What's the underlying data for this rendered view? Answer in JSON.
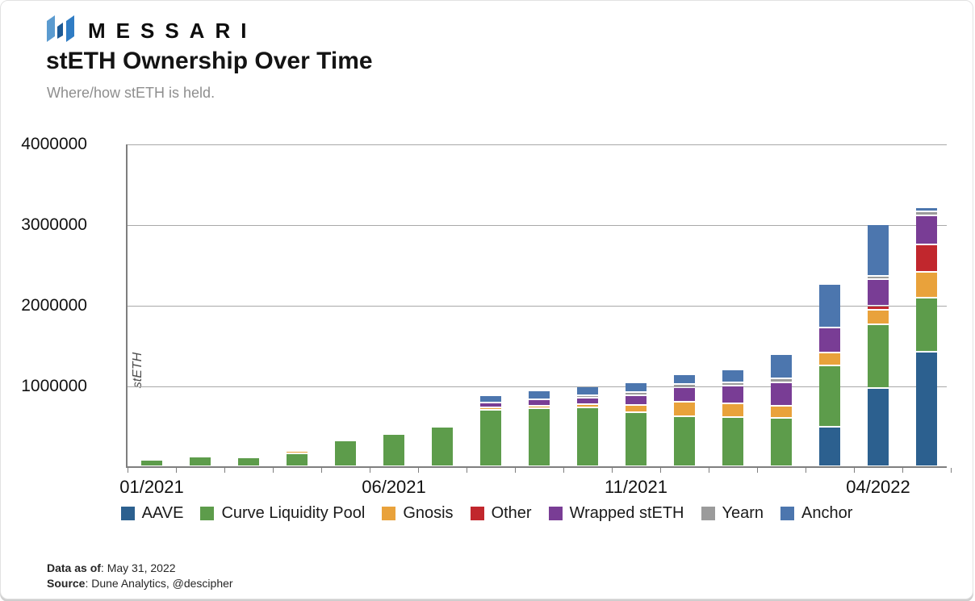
{
  "brand": {
    "name": "MESSARI"
  },
  "header": {
    "title": "stETH Ownership Over Time",
    "subtitle": "Where/how stETH is held."
  },
  "footer": {
    "data_as_of_label": "Data as of",
    "data_as_of_value": ": May 31, 2022",
    "source_label": "Source",
    "source_value": ": Dune Analytics, @descipher"
  },
  "icons": {
    "logo": "messari-logo-icon",
    "logo_colors": [
      "#5b9bd0",
      "#1d5a96",
      "#2f7cc4"
    ]
  },
  "chart_data": {
    "type": "bar",
    "stacked": true,
    "title": "stETH Ownership Over Time",
    "xlabel": "",
    "ylabel": "stETH",
    "ylim": [
      0,
      4000000
    ],
    "ytick_interval": 1000000,
    "ytick_labels_top_to_bottom": [
      "4000000",
      "3000000",
      "2000000",
      "1000000"
    ],
    "grid": "horizontal",
    "legend_position": "bottom",
    "categories": [
      "01/2021",
      "02/2021",
      "03/2021",
      "04/2021",
      "05/2021",
      "06/2021",
      "07/2021",
      "08/2021",
      "09/2021",
      "10/2021",
      "11/2021",
      "12/2021",
      "01/2022",
      "02/2022",
      "03/2022",
      "04/2022",
      "05/2022"
    ],
    "xticks_shown": [
      {
        "index": 0,
        "label": "01/2021"
      },
      {
        "index": 5,
        "label": "06/2021"
      },
      {
        "index": 10,
        "label": "11/2021"
      },
      {
        "index": 15,
        "label": "04/2022"
      }
    ],
    "series": [
      {
        "name": "AAVE",
        "color": "#2c608f",
        "values": [
          0,
          0,
          0,
          0,
          0,
          0,
          0,
          0,
          0,
          0,
          0,
          0,
          0,
          0,
          470000,
          950000,
          1400000
        ]
      },
      {
        "name": "Curve Liquidity Pool",
        "color": "#5d9c4b",
        "values": [
          60000,
          100000,
          90000,
          140000,
          300000,
          380000,
          475000,
          680000,
          700000,
          710000,
          650000,
          600000,
          590000,
          580000,
          740000,
          770000,
          650000
        ]
      },
      {
        "name": "Gnosis",
        "color": "#e9a23b",
        "values": [
          0,
          0,
          0,
          15000,
          0,
          0,
          0,
          10000,
          10000,
          25000,
          75000,
          165000,
          155000,
          135000,
          140000,
          165000,
          300000
        ]
      },
      {
        "name": "Other",
        "color": "#c1272d",
        "values": [
          0,
          0,
          0,
          0,
          0,
          0,
          0,
          0,
          0,
          0,
          0,
          0,
          0,
          0,
          0,
          25000,
          325000
        ]
      },
      {
        "name": "Wrapped stETH",
        "color": "#793d95",
        "values": [
          0,
          0,
          0,
          0,
          0,
          0,
          0,
          45000,
          65000,
          55000,
          100000,
          160000,
          200000,
          265000,
          290000,
          310000,
          340000
        ]
      },
      {
        "name": "Yearn",
        "color": "#9b9b9b",
        "values": [
          0,
          0,
          0,
          0,
          0,
          0,
          0,
          0,
          0,
          10000,
          15000,
          15000,
          20000,
          30000,
          0,
          25000,
          30000
        ]
      },
      {
        "name": "Anchor",
        "color": "#4c76ae",
        "values": [
          0,
          0,
          0,
          0,
          0,
          0,
          0,
          70000,
          85000,
          90000,
          100000,
          105000,
          135000,
          280000,
          520000,
          620000,
          25000
        ]
      }
    ]
  }
}
